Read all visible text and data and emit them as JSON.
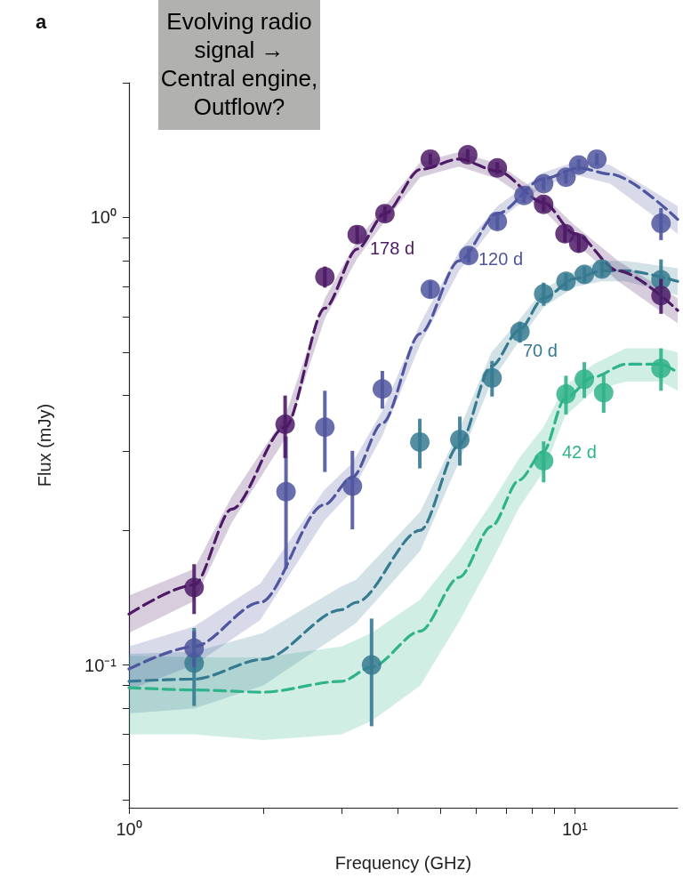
{
  "chart_data": {
    "type": "scatter",
    "xlabel": "Frequency (GHz)",
    "ylabel": "Flux (mJy)",
    "log": "xy",
    "xlim": [
      1,
      17
    ],
    "ylim": [
      0.048,
      2
    ],
    "xticks": [
      {
        "value": 1,
        "label": "10⁰"
      },
      {
        "value": 2,
        "label": null
      },
      {
        "value": 3,
        "label": null
      },
      {
        "value": 4,
        "label": null
      },
      {
        "value": 5,
        "label": null
      },
      {
        "value": 6,
        "label": null
      },
      {
        "value": 7,
        "label": null
      },
      {
        "value": 8,
        "label": null
      },
      {
        "value": 9,
        "label": null
      },
      {
        "value": 10,
        "label": "10¹"
      }
    ],
    "yticks": [
      {
        "value": 0.05,
        "label": null
      },
      {
        "value": 0.06,
        "label": null
      },
      {
        "value": 0.07,
        "label": null
      },
      {
        "value": 0.08,
        "label": null
      },
      {
        "value": 0.09,
        "label": null
      },
      {
        "value": 0.1,
        "label": "10⁻¹"
      },
      {
        "value": 0.2,
        "label": null
      },
      {
        "value": 0.3,
        "label": null
      },
      {
        "value": 0.4,
        "label": null
      },
      {
        "value": 0.5,
        "label": null
      },
      {
        "value": 0.6,
        "label": null
      },
      {
        "value": 0.7,
        "label": null
      },
      {
        "value": 0.8,
        "label": null
      },
      {
        "value": 0.9,
        "label": null
      },
      {
        "value": 1,
        "label": "10⁰"
      },
      {
        "value": 2,
        "label": null
      }
    ],
    "grid": false,
    "series": [
      {
        "type": "line",
        "marker": "none",
        "line_style": "dashed",
        "color": "#2fb38a",
        "x": [
          1,
          1.4,
          2,
          3,
          3.5,
          4.5,
          5.5,
          6.5,
          7.5,
          8.5,
          9.5,
          11,
          13,
          15.6,
          17
        ],
        "values": [
          0.089,
          0.088,
          0.087,
          0.092,
          0.099,
          0.119,
          0.157,
          0.204,
          0.259,
          0.3,
          0.394,
          0.44,
          0.47,
          0.47,
          0.45
        ],
        "lower": [
          0.07,
          0.07,
          0.068,
          0.07,
          0.075,
          0.09,
          0.125,
          0.17,
          0.225,
          0.27,
          0.36,
          0.41,
          0.43,
          0.43,
          0.41
        ],
        "upper": [
          0.105,
          0.104,
          0.104,
          0.11,
          0.118,
          0.14,
          0.18,
          0.23,
          0.29,
          0.34,
          0.42,
          0.47,
          0.51,
          0.51,
          0.5
        ]
      },
      {
        "type": "line",
        "marker": "none",
        "line_style": "dashed",
        "color": "#367a90",
        "x": [
          1,
          1.4,
          2,
          3,
          3.23,
          4.5,
          5.5,
          6.5,
          7.5,
          8.5,
          10,
          11.5,
          13,
          17
        ],
        "values": [
          0.092,
          0.093,
          0.103,
          0.133,
          0.138,
          0.2,
          0.31,
          0.465,
          0.56,
          0.66,
          0.73,
          0.76,
          0.76,
          0.72
        ],
        "lower": [
          0.078,
          0.08,
          0.09,
          0.118,
          0.124,
          0.18,
          0.285,
          0.43,
          0.53,
          0.63,
          0.7,
          0.72,
          0.72,
          0.67
        ],
        "upper": [
          0.106,
          0.107,
          0.118,
          0.15,
          0.155,
          0.22,
          0.335,
          0.5,
          0.59,
          0.69,
          0.76,
          0.8,
          0.8,
          0.77
        ]
      },
      {
        "type": "line",
        "marker": "none",
        "line_style": "dashed",
        "color": "#4f559e",
        "x": [
          1,
          1.4,
          1.97,
          2.74,
          3.17,
          3.7,
          4.5,
          5.5,
          6.7,
          8.5,
          10.2,
          12,
          17
        ],
        "values": [
          0.098,
          0.11,
          0.138,
          0.228,
          0.263,
          0.347,
          0.55,
          0.8,
          1.02,
          1.22,
          1.29,
          1.25,
          0.99
        ],
        "lower": [
          0.088,
          0.1,
          0.126,
          0.21,
          0.245,
          0.325,
          0.52,
          0.76,
          0.98,
          1.18,
          1.24,
          1.19,
          0.92
        ],
        "upper": [
          0.11,
          0.122,
          0.152,
          0.246,
          0.283,
          0.37,
          0.58,
          0.84,
          1.06,
          1.26,
          1.34,
          1.31,
          1.06
        ]
      },
      {
        "type": "line",
        "marker": "none",
        "line_style": "dashed",
        "color": "#4d1a66",
        "x": [
          1,
          1.4,
          1.7,
          2.24,
          2.75,
          3.25,
          3.75,
          4.5,
          5.5,
          6.7,
          8.5,
          10,
          12.5,
          17
        ],
        "values": [
          0.13,
          0.151,
          0.223,
          0.34,
          0.627,
          0.85,
          1.02,
          1.28,
          1.35,
          1.27,
          1.08,
          0.92,
          0.76,
          0.62
        ],
        "lower": [
          0.118,
          0.139,
          0.208,
          0.32,
          0.595,
          0.81,
          0.98,
          1.23,
          1.3,
          1.22,
          1.04,
          0.88,
          0.72,
          0.58
        ],
        "upper": [
          0.143,
          0.164,
          0.238,
          0.36,
          0.66,
          0.89,
          1.06,
          1.33,
          1.4,
          1.32,
          1.12,
          0.96,
          0.8,
          0.66
        ]
      },
      {
        "marker": "circle",
        "color": "#2fb38a",
        "x": [
          8.51,
          9.55,
          10.5,
          11.6,
          15.6
        ],
        "values": [
          0.286,
          0.403,
          0.435,
          0.406,
          0.46
        ],
        "errors": [
          0.03,
          0.04,
          0.04,
          0.04,
          0.05
        ]
      },
      {
        "marker": "circle",
        "color": "#367a90",
        "x": [
          1.4,
          3.5,
          4.49,
          5.52,
          6.52,
          7.53,
          8.51,
          9.55,
          10.5,
          11.5,
          15.6
        ],
        "values": [
          0.101,
          0.1,
          0.315,
          0.319,
          0.438,
          0.555,
          0.675,
          0.72,
          0.746,
          0.767,
          0.726
        ],
        "errors": [
          0.02,
          0.027,
          0.04,
          0.04,
          0.04,
          0.03,
          0.04,
          0.03,
          0.03,
          0.03,
          0.08
        ]
      },
      {
        "marker": "circle",
        "color": "#4f559e",
        "x": [
          1.4,
          2.25,
          2.75,
          3.17,
          3.7,
          4.74,
          5.78,
          6.7,
          7.69,
          8.51,
          9.55,
          10.2,
          11.2,
          15.6
        ],
        "values": [
          0.109,
          0.244,
          0.34,
          0.251,
          0.414,
          0.691,
          0.822,
          0.98,
          1.12,
          1.19,
          1.23,
          1.31,
          1.35,
          0.97
        ],
        "errors": [
          0.01,
          0.08,
          0.07,
          0.05,
          0.04,
          0.03,
          0.03,
          0.04,
          0.04,
          0.04,
          0.04,
          0.04,
          0.04,
          0.08
        ]
      },
      {
        "marker": "circle",
        "color": "#4d1a66",
        "x": [
          1.4,
          2.24,
          2.75,
          3.25,
          3.75,
          4.74,
          5.75,
          6.7,
          8.51,
          9.5,
          10.2,
          15.6
        ],
        "values": [
          0.149,
          0.345,
          0.737,
          0.916,
          1.02,
          1.35,
          1.38,
          1.29,
          1.07,
          0.92,
          0.876,
          0.669
        ],
        "errors": [
          0.019,
          0.055,
          0.04,
          0.04,
          0.04,
          0.04,
          0.04,
          0.04,
          0.04,
          0.04,
          0.04,
          0.06
        ]
      }
    ],
    "annotations": [
      "a",
      "Evolving radio signal → Central engine, Outflow?",
      "178 d",
      "120 d",
      "70 d",
      "42 d"
    ]
  }
}
